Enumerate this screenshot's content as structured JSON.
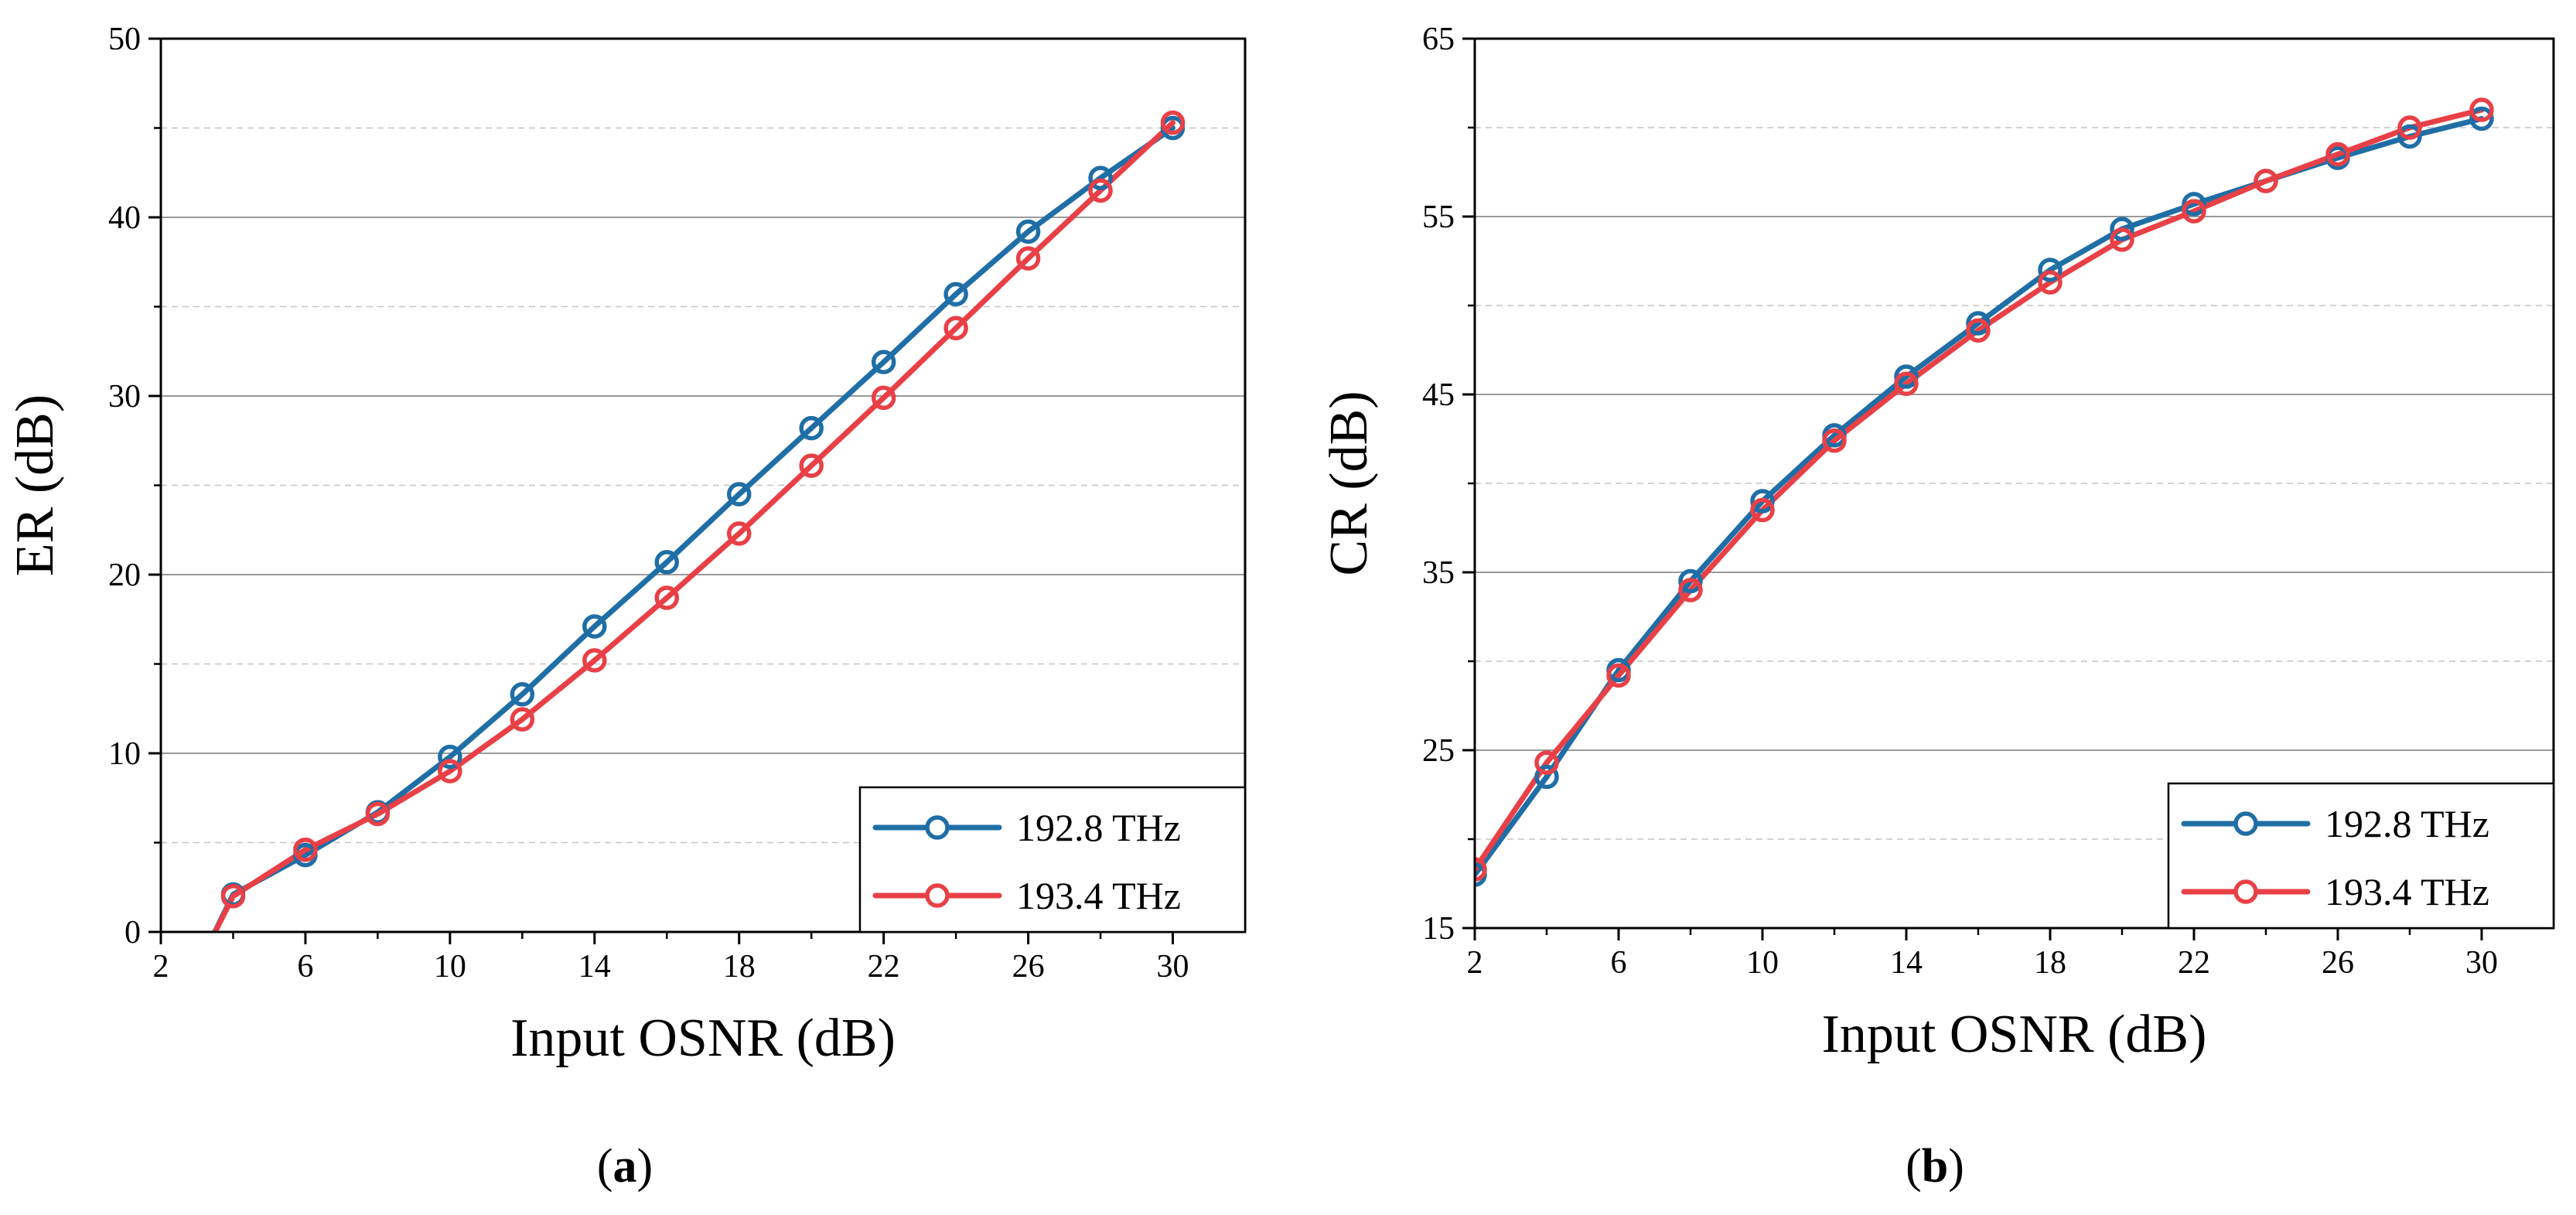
{
  "chart_data": [
    {
      "type": "line",
      "caption_letter": "a",
      "xlabel": "Input OSNR (dB)",
      "ylabel": "ER (dB)",
      "xlim": [
        2,
        32
      ],
      "ylim": [
        0,
        50
      ],
      "xticks": [
        2,
        6,
        10,
        14,
        18,
        22,
        26,
        30
      ],
      "yticks": [
        0,
        10,
        20,
        30,
        40,
        50
      ],
      "grid": true,
      "legend_position": "bottom-right",
      "series": [
        {
          "name": "192.8 THz",
          "color": "#1f6ea6",
          "x": [
            4,
            6,
            8,
            10,
            12,
            14,
            16,
            18,
            20,
            22,
            24,
            26,
            28,
            30
          ],
          "y": [
            2.1,
            4.3,
            6.7,
            9.8,
            13.3,
            17.1,
            20.7,
            24.5,
            28.2,
            31.9,
            35.7,
            39.2,
            42.2,
            45.0
          ],
          "line_start": [
            3.3,
            -0.8
          ]
        },
        {
          "name": "193.4 THz",
          "color": "#e84046",
          "x": [
            4,
            6,
            8,
            10,
            12,
            14,
            16,
            18,
            20,
            22,
            24,
            26,
            28,
            30
          ],
          "y": [
            2.0,
            4.6,
            6.6,
            9.0,
            11.9,
            15.2,
            18.7,
            22.3,
            26.1,
            29.9,
            33.8,
            37.7,
            41.5,
            45.3
          ],
          "line_start": [
            3.3,
            -0.8
          ]
        }
      ]
    },
    {
      "type": "line",
      "caption_letter": "b",
      "xlabel": "Input OSNR (dB)",
      "ylabel": "CR (dB)",
      "xlim": [
        2,
        32
      ],
      "ylim": [
        15,
        65
      ],
      "xticks": [
        2,
        6,
        10,
        14,
        18,
        22,
        26,
        30
      ],
      "yticks": [
        15,
        25,
        35,
        45,
        55,
        65
      ],
      "grid": true,
      "legend_position": "bottom-right",
      "series": [
        {
          "name": "192.8 THz",
          "color": "#1f6ea6",
          "x": [
            2,
            4,
            6,
            8,
            10,
            12,
            14,
            16,
            18,
            20,
            22,
            24,
            26,
            28,
            30
          ],
          "y": [
            18.0,
            23.5,
            29.5,
            34.5,
            39.0,
            42.7,
            46.0,
            49.0,
            52.0,
            54.3,
            55.7,
            57.0,
            58.3,
            59.5,
            60.5
          ]
        },
        {
          "name": "193.4 THz",
          "color": "#e84046",
          "x": [
            2,
            4,
            6,
            8,
            10,
            12,
            14,
            16,
            18,
            20,
            22,
            24,
            26,
            28,
            30
          ],
          "y": [
            18.3,
            24.3,
            29.2,
            34.0,
            38.5,
            42.4,
            45.6,
            48.6,
            51.3,
            53.7,
            55.3,
            57.0,
            58.5,
            60.0,
            61.0
          ]
        }
      ]
    }
  ]
}
